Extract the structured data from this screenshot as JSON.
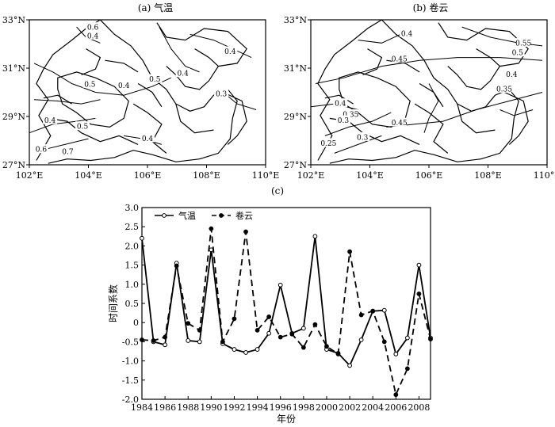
{
  "chart_data": [
    {
      "type": "contour_map",
      "title": "(a) 气温",
      "xlim": [
        102,
        110
      ],
      "ylim": [
        27,
        33
      ],
      "x_ticks": [
        "102°E",
        "104°E",
        "106°E",
        "108°E",
        "110°E"
      ],
      "y_ticks": [
        "27°N",
        "29°N",
        "31°N",
        "33°N"
      ],
      "contour_labels": [
        {
          "value": "0.6",
          "lon": 104.15,
          "lat": 32.7
        },
        {
          "value": "0.4",
          "lon": 104.15,
          "lat": 32.35
        },
        {
          "value": "0.4",
          "lon": 108.8,
          "lat": 31.7
        },
        {
          "value": "0.5",
          "lon": 106.25,
          "lat": 30.55
        },
        {
          "value": "0.4",
          "lon": 107.2,
          "lat": 30.8
        },
        {
          "value": "0.5",
          "lon": 104.05,
          "lat": 30.35
        },
        {
          "value": "0.4",
          "lon": 105.2,
          "lat": 30.3
        },
        {
          "value": "0.3",
          "lon": 108.5,
          "lat": 29.95
        },
        {
          "value": "0.4",
          "lon": 102.7,
          "lat": 28.85
        },
        {
          "value": "0.5",
          "lon": 103.8,
          "lat": 28.6
        },
        {
          "value": "0.4",
          "lon": 106.0,
          "lat": 28.1
        },
        {
          "value": "0.6",
          "lon": 102.4,
          "lat": 27.65
        },
        {
          "value": "0.7",
          "lon": 103.3,
          "lat": 27.55
        }
      ]
    },
    {
      "type": "contour_map",
      "title": "(b) 卷云",
      "xlim": [
        102,
        110
      ],
      "ylim": [
        27,
        33
      ],
      "x_ticks": [
        "102°E",
        "104°E",
        "106°E",
        "108°E",
        "110°E"
      ],
      "y_ticks": [
        "27°N",
        "29°N",
        "31°N",
        "33°N"
      ],
      "contour_labels": [
        {
          "value": "0.4",
          "lon": 105.25,
          "lat": 32.45
        },
        {
          "value": "0.55",
          "lon": 109.2,
          "lat": 32.05
        },
        {
          "value": "0.5",
          "lon": 109.0,
          "lat": 31.65
        },
        {
          "value": "0.45",
          "lon": 105.0,
          "lat": 31.4
        },
        {
          "value": "0.4",
          "lon": 108.8,
          "lat": 30.75
        },
        {
          "value": "0.35",
          "lon": 108.55,
          "lat": 30.15
        },
        {
          "value": "0.4",
          "lon": 103.0,
          "lat": 29.55
        },
        {
          "value": "0.35",
          "lon": 103.35,
          "lat": 29.1
        },
        {
          "value": "0.3",
          "lon": 103.1,
          "lat": 28.85
        },
        {
          "value": "0.45",
          "lon": 105.0,
          "lat": 28.75
        },
        {
          "value": "0.3",
          "lon": 103.75,
          "lat": 28.15
        },
        {
          "value": "0.25",
          "lon": 102.6,
          "lat": 27.9
        }
      ]
    },
    {
      "type": "line",
      "title": "(c)",
      "xlabel": "年份",
      "ylabel": "时间系数",
      "xlim": [
        1984,
        2009
      ],
      "ylim": [
        -2.0,
        3.0
      ],
      "x_ticks": [
        "1984",
        "1986",
        "1988",
        "1990",
        "1992",
        "1994",
        "1996",
        "1998",
        "2000",
        "2002",
        "2004",
        "2006",
        "2008"
      ],
      "y_ticks": [
        "3.0",
        "2.5",
        "2.0",
        "1.5",
        "1.0",
        "0.5",
        "0",
        "-0.5",
        "-1.0",
        "-1.5",
        "-2.0"
      ],
      "legend": "top-left",
      "x": [
        1984,
        1985,
        1986,
        1987,
        1988,
        1989,
        1990,
        1991,
        1992,
        1993,
        1994,
        1995,
        1996,
        1997,
        1998,
        1999,
        2000,
        2001,
        2002,
        2003,
        2004,
        2005,
        2006,
        2007,
        2008,
        2009
      ],
      "series": [
        {
          "name": "气温",
          "style": "solid",
          "marker": "open-circle",
          "values": [
            2.2,
            -0.5,
            -0.58,
            1.55,
            -0.47,
            -0.5,
            1.9,
            -0.55,
            -0.7,
            -0.78,
            -0.7,
            -0.28,
            0.98,
            -0.28,
            -0.15,
            2.25,
            -0.7,
            -0.8,
            -1.12,
            -0.45,
            0.3,
            0.32,
            -0.82,
            -0.4,
            1.5,
            -0.4
          ]
        },
        {
          "name": "卷云",
          "style": "dashed",
          "marker": "filled-circle",
          "values": [
            -0.45,
            -0.47,
            -0.38,
            1.48,
            -0.02,
            -0.2,
            2.45,
            -0.5,
            0.1,
            2.37,
            -0.2,
            0.15,
            -0.38,
            -0.3,
            -0.65,
            -0.05,
            -0.62,
            -0.82,
            1.85,
            0.2,
            0.3,
            -0.5,
            -1.88,
            -1.2,
            0.75,
            -0.43
          ]
        }
      ]
    }
  ]
}
